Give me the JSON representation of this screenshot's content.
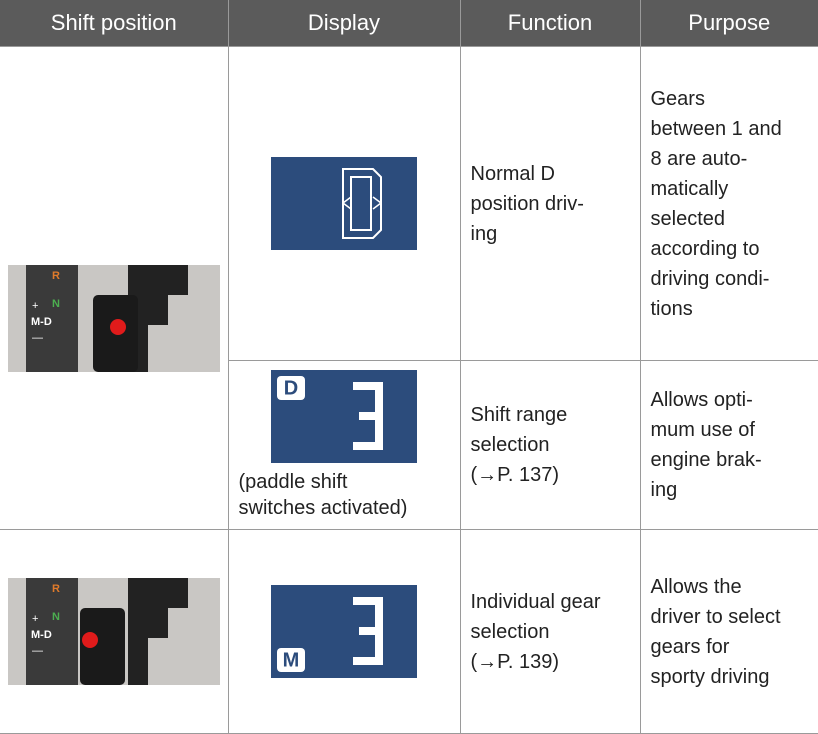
{
  "header": [
    "Shift position",
    "Display",
    "Function",
    "Purpose"
  ],
  "lever_labels": [
    "R",
    "N",
    "+",
    "M-D",
    "—"
  ],
  "rows": [
    {
      "function": [
        "Normal D",
        "position driv-",
        "ing"
      ],
      "purpose": [
        "Gears",
        "between 1 and",
        "8 are auto-",
        "matically",
        "selected",
        "according to",
        "driving condi-",
        "tions"
      ]
    },
    {
      "display_badge": "D",
      "display_caption": [
        "(paddle shift",
        "switches activated)"
      ],
      "function": [
        "Shift range",
        "selection",
        "(→P. 137)"
      ],
      "purpose": [
        "Allows opti-",
        "mum use of",
        "engine brak-",
        "ing"
      ]
    },
    {
      "display_badge": "M",
      "function": [
        "Individual gear",
        "selection",
        "(→P. 139)"
      ],
      "purpose": [
        "Allows the",
        "driver to select",
        "gears for",
        "sporty driving"
      ]
    }
  ]
}
